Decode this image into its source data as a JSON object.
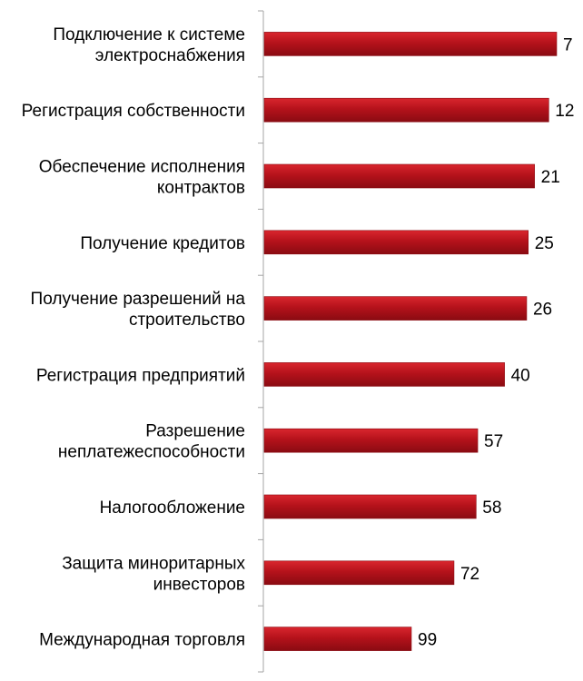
{
  "chart_data": {
    "type": "bar",
    "orientation": "horizontal",
    "title": "",
    "xlabel": "",
    "ylabel": "",
    "categories": [
      [
        "Подключение к системе",
        "электроснабжения"
      ],
      [
        "Регистрация собственности"
      ],
      [
        "Обеспечение исполнения",
        "контрактов"
      ],
      [
        "Получение кредитов"
      ],
      [
        "Получение разрешений на",
        "строительство"
      ],
      [
        "Регистрация предприятий"
      ],
      [
        "Разрешение",
        "неплатежеспособности"
      ],
      [
        "Налогообложение"
      ],
      [
        "Защита миноритарных",
        "инвесторов"
      ],
      [
        "Международная торговля"
      ]
    ],
    "values": [
      7,
      12,
      21,
      25,
      26,
      40,
      57,
      58,
      72,
      99
    ],
    "value_labels": [
      "7",
      "12",
      "21",
      "25",
      "26",
      "40",
      "57",
      "58",
      "72",
      "99"
    ],
    "bar_length_scale": "reversed",
    "grid": false,
    "legend": "none",
    "colors": {
      "bar_fill": "#b5121b",
      "bar_fill_light": "#d9262e",
      "bar_fill_dark": "#8a0b12",
      "axis": "#a6a6a6",
      "text": "#000000"
    }
  }
}
